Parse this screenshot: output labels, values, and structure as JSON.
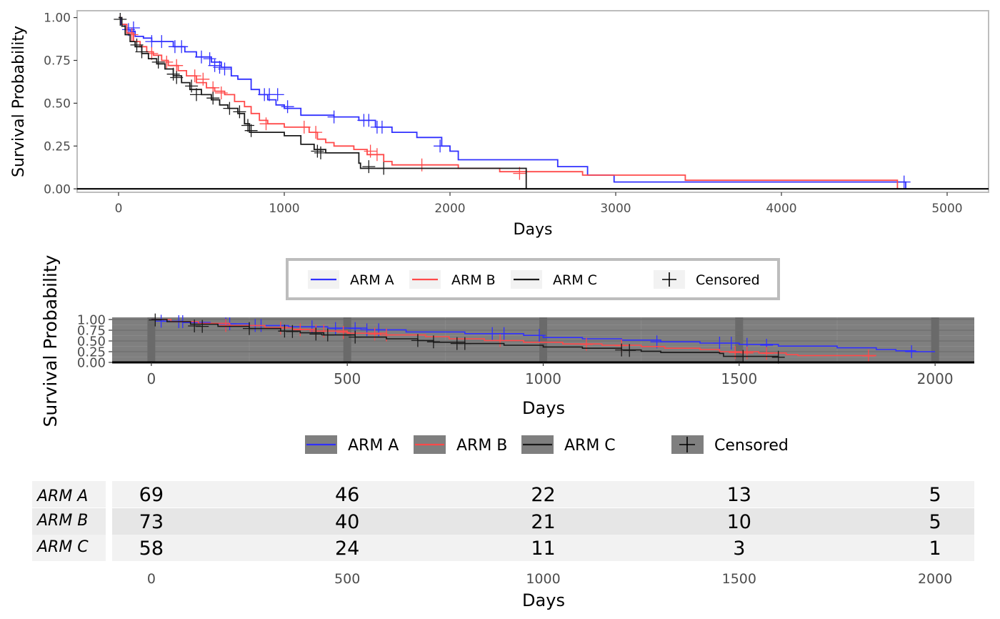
{
  "colors": {
    "arm_a": "#3030FF",
    "arm_b": "#FF4A4A",
    "arm_c": "#1A1A1A",
    "axis": "#000000",
    "panel_border": "#BDBDBD",
    "dark_panel": "#7F7F7F"
  },
  "chart_data": [
    {
      "type": "line",
      "subtype": "kaplan-meier step",
      "title": "",
      "xlabel": "Days",
      "ylabel": "Survival Probability",
      "xlim": [
        -250,
        5250
      ],
      "ylim": [
        -0.02,
        1.04
      ],
      "xticks": [
        0,
        1000,
        2000,
        3000,
        4000,
        5000
      ],
      "yticks": [
        0.0,
        0.25,
        0.5,
        0.75,
        1.0
      ],
      "ytick_labels": [
        "0.00",
        "0.25",
        "0.50",
        "0.75",
        "1.00"
      ],
      "grid": false,
      "legend_position": "bottom",
      "legend": [
        "ARM A",
        "ARM B",
        "ARM C",
        "Censored"
      ],
      "series": [
        {
          "name": "ARM A",
          "color": "#3030FF",
          "x": [
            0,
            15,
            40,
            70,
            100,
            150,
            200,
            260,
            330,
            400,
            470,
            560,
            620,
            680,
            720,
            800,
            850,
            900,
            950,
            1000,
            1100,
            1300,
            1450,
            1550,
            1650,
            1800,
            1950,
            2000,
            2050,
            2650,
            2830,
            2990,
            3400,
            4700,
            4750
          ],
          "y": [
            1.0,
            0.96,
            0.93,
            0.92,
            0.89,
            0.88,
            0.86,
            0.86,
            0.83,
            0.8,
            0.77,
            0.74,
            0.71,
            0.66,
            0.64,
            0.58,
            0.55,
            0.52,
            0.49,
            0.47,
            0.43,
            0.42,
            0.4,
            0.36,
            0.33,
            0.3,
            0.25,
            0.22,
            0.17,
            0.13,
            0.08,
            0.04,
            0.04,
            0.04,
            0.0
          ],
          "censored": [
            [
              60,
              0.93
            ],
            [
              90,
              0.94
            ],
            [
              200,
              0.86
            ],
            [
              260,
              0.86
            ],
            [
              340,
              0.83
            ],
            [
              380,
              0.83
            ],
            [
              500,
              0.77
            ],
            [
              550,
              0.76
            ],
            [
              580,
              0.72
            ],
            [
              610,
              0.71
            ],
            [
              640,
              0.7
            ],
            [
              880,
              0.55
            ],
            [
              910,
              0.55
            ],
            [
              960,
              0.55
            ],
            [
              1020,
              0.48
            ],
            [
              1300,
              0.42
            ],
            [
              1480,
              0.4
            ],
            [
              1510,
              0.4
            ],
            [
              1560,
              0.36
            ],
            [
              1590,
              0.36
            ],
            [
              1940,
              0.25
            ],
            [
              4740,
              0.04
            ]
          ]
        },
        {
          "name": "ARM B",
          "color": "#FF4A4A",
          "x": [
            0,
            20,
            50,
            90,
            130,
            170,
            210,
            260,
            300,
            360,
            410,
            470,
            530,
            580,
            640,
            700,
            760,
            800,
            850,
            900,
            1000,
            1150,
            1200,
            1250,
            1300,
            1420,
            1500,
            1600,
            1650,
            2050,
            2300,
            2800,
            3420,
            4700
          ],
          "y": [
            1.0,
            0.96,
            0.91,
            0.86,
            0.83,
            0.8,
            0.78,
            0.75,
            0.72,
            0.69,
            0.66,
            0.62,
            0.59,
            0.57,
            0.55,
            0.51,
            0.48,
            0.44,
            0.4,
            0.38,
            0.36,
            0.33,
            0.29,
            0.27,
            0.25,
            0.23,
            0.2,
            0.16,
            0.14,
            0.12,
            0.1,
            0.08,
            0.05,
            0.0
          ],
          "censored": [
            [
              80,
              0.9
            ],
            [
              200,
              0.79
            ],
            [
              290,
              0.74
            ],
            [
              350,
              0.72
            ],
            [
              460,
              0.66
            ],
            [
              510,
              0.64
            ],
            [
              570,
              0.59
            ],
            [
              620,
              0.56
            ],
            [
              890,
              0.38
            ],
            [
              1120,
              0.36
            ],
            [
              1190,
              0.33
            ],
            [
              1520,
              0.22
            ],
            [
              1560,
              0.2
            ],
            [
              1830,
              0.14
            ],
            [
              2420,
              0.09
            ]
          ]
        },
        {
          "name": "ARM C",
          "color": "#1A1A1A",
          "x": [
            0,
            20,
            40,
            70,
            100,
            140,
            180,
            230,
            280,
            330,
            380,
            430,
            500,
            560,
            610,
            660,
            720,
            760,
            790,
            1000,
            1100,
            1180,
            1250,
            1450,
            1460,
            2460
          ],
          "y": [
            1.0,
            0.95,
            0.9,
            0.86,
            0.83,
            0.79,
            0.76,
            0.73,
            0.7,
            0.66,
            0.62,
            0.58,
            0.55,
            0.52,
            0.49,
            0.47,
            0.44,
            0.38,
            0.33,
            0.31,
            0.26,
            0.23,
            0.21,
            0.15,
            0.12,
            0.0
          ],
          "censored": [
            [
              10,
              0.99
            ],
            [
              110,
              0.84
            ],
            [
              140,
              0.8
            ],
            [
              240,
              0.74
            ],
            [
              330,
              0.67
            ],
            [
              350,
              0.65
            ],
            [
              440,
              0.6
            ],
            [
              470,
              0.55
            ],
            [
              570,
              0.53
            ],
            [
              670,
              0.47
            ],
            [
              730,
              0.45
            ],
            [
              780,
              0.37
            ],
            [
              800,
              0.34
            ],
            [
              1200,
              0.22
            ],
            [
              1220,
              0.21
            ],
            [
              1510,
              0.13
            ],
            [
              1600,
              0.12
            ]
          ]
        }
      ]
    },
    {
      "type": "line",
      "subtype": "kaplan-meier step",
      "title": "",
      "xlabel": "Days",
      "ylabel": "Survival Probability",
      "xlim": [
        -100,
        2100
      ],
      "ylim": [
        0.0,
        1.05
      ],
      "xticks": [
        0,
        500,
        1000,
        1500,
        2000
      ],
      "yticks": [
        0.0,
        0.25,
        0.5,
        0.75,
        1.0
      ],
      "ytick_labels": [
        "0.00",
        "0.25",
        "0.50",
        "0.75",
        "1.00"
      ],
      "grid": true,
      "legend_position": "bottom",
      "legend": [
        "ARM A",
        "ARM B",
        "ARM C",
        "Censored"
      ],
      "series": [
        {
          "name": "ARM A",
          "color": "#3030FF",
          "x": [
            0,
            30,
            80,
            150,
            250,
            350,
            450,
            550,
            650,
            800,
            950,
            1000,
            1100,
            1200,
            1300,
            1400,
            1500,
            1600,
            1750,
            1850,
            1900,
            1950,
            2000
          ],
          "y": [
            1.0,
            0.96,
            0.93,
            0.9,
            0.86,
            0.83,
            0.8,
            0.76,
            0.71,
            0.67,
            0.63,
            0.58,
            0.55,
            0.52,
            0.48,
            0.45,
            0.42,
            0.38,
            0.34,
            0.3,
            0.27,
            0.25,
            0.25
          ],
          "censored": [
            [
              25,
              0.96
            ],
            [
              70,
              0.95
            ],
            [
              80,
              0.95
            ],
            [
              190,
              0.9
            ],
            [
              200,
              0.9
            ],
            [
              265,
              0.86
            ],
            [
              280,
              0.86
            ],
            [
              410,
              0.83
            ],
            [
              470,
              0.79
            ],
            [
              520,
              0.79
            ],
            [
              550,
              0.76
            ],
            [
              580,
              0.76
            ],
            [
              870,
              0.67
            ],
            [
              900,
              0.67
            ],
            [
              990,
              0.63
            ],
            [
              1290,
              0.48
            ],
            [
              1450,
              0.45
            ],
            [
              1480,
              0.45
            ],
            [
              1520,
              0.42
            ],
            [
              1570,
              0.4
            ],
            [
              1940,
              0.25
            ]
          ]
        },
        {
          "name": "ARM B",
          "color": "#FF4A4A",
          "x": [
            0,
            50,
            120,
            200,
            290,
            360,
            420,
            500,
            600,
            700,
            760,
            850,
            950,
            1050,
            1150,
            1250,
            1310,
            1400,
            1450,
            1550,
            1620,
            1650,
            1850
          ],
          "y": [
            1.0,
            0.95,
            0.91,
            0.86,
            0.81,
            0.77,
            0.73,
            0.68,
            0.64,
            0.6,
            0.55,
            0.51,
            0.47,
            0.43,
            0.4,
            0.37,
            0.33,
            0.3,
            0.25,
            0.22,
            0.18,
            0.16,
            0.16
          ],
          "censored": [
            [
              190,
              0.86
            ],
            [
              330,
              0.8
            ],
            [
              380,
              0.76
            ],
            [
              420,
              0.73
            ],
            [
              440,
              0.73
            ],
            [
              490,
              0.7
            ],
            [
              570,
              0.66
            ],
            [
              600,
              0.64
            ],
            [
              890,
              0.51
            ],
            [
              1110,
              0.42
            ],
            [
              1200,
              0.39
            ],
            [
              1490,
              0.23
            ],
            [
              1520,
              0.22
            ],
            [
              1570,
              0.21
            ],
            [
              1830,
              0.15
            ]
          ]
        },
        {
          "name": "ARM C",
          "color": "#1A1A1A",
          "x": [
            0,
            40,
            100,
            170,
            250,
            330,
            380,
            440,
            520,
            600,
            680,
            720,
            800,
            900,
            1000,
            1100,
            1200,
            1250,
            1300,
            1450,
            1460,
            1600
          ],
          "y": [
            1.0,
            0.95,
            0.89,
            0.84,
            0.79,
            0.73,
            0.69,
            0.64,
            0.59,
            0.55,
            0.51,
            0.47,
            0.44,
            0.4,
            0.36,
            0.33,
            0.29,
            0.26,
            0.23,
            0.21,
            0.14,
            0.12
          ],
          "censored": [
            [
              10,
              0.99
            ],
            [
              110,
              0.85
            ],
            [
              130,
              0.84
            ],
            [
              250,
              0.79
            ],
            [
              340,
              0.73
            ],
            [
              360,
              0.72
            ],
            [
              420,
              0.66
            ],
            [
              450,
              0.64
            ],
            [
              520,
              0.59
            ],
            [
              680,
              0.51
            ],
            [
              720,
              0.48
            ],
            [
              780,
              0.44
            ],
            [
              800,
              0.44
            ],
            [
              1200,
              0.29
            ],
            [
              1220,
              0.28
            ],
            [
              1510,
              0.14
            ],
            [
              1600,
              0.12
            ]
          ]
        }
      ]
    },
    {
      "type": "table",
      "title": "",
      "xlabel": "Days",
      "xticks": [
        0,
        500,
        1000,
        1500,
        2000
      ],
      "rows": [
        {
          "label": "ARM A",
          "values": [
            69,
            46,
            22,
            13,
            5
          ]
        },
        {
          "label": "ARM B",
          "values": [
            73,
            40,
            21,
            10,
            5
          ]
        },
        {
          "label": "ARM C",
          "values": [
            58,
            24,
            11,
            3,
            1
          ]
        }
      ]
    }
  ]
}
